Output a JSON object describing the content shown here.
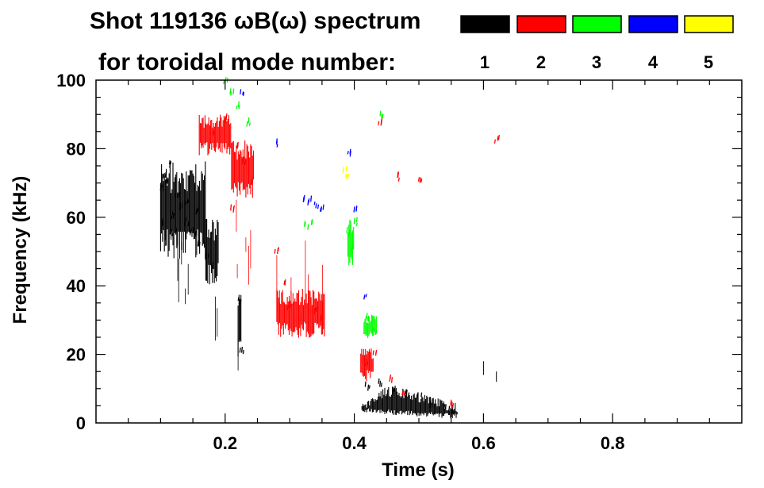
{
  "chart_data": {
    "type": "scatter",
    "title_line1": "Shot 119136 ωB(ω) spectrum",
    "title_line2": "for toroidal mode number:",
    "xlabel": "Time (s)",
    "ylabel": "Frequency (kHz)",
    "xlim": [
      0.0,
      1.0
    ],
    "ylim": [
      0,
      100
    ],
    "x_ticks": [
      0.2,
      0.4,
      0.6,
      0.8
    ],
    "x_tick_labels": [
      "0.2",
      "0.4",
      "0.6",
      "0.8"
    ],
    "y_ticks": [
      0,
      20,
      40,
      60,
      80,
      100
    ],
    "y_tick_labels": [
      "0",
      "20",
      "40",
      "60",
      "80",
      "100"
    ],
    "legend_position": "top-right",
    "series": [
      {
        "name": "1",
        "color": "#000000",
        "regions": [
          {
            "t": [
              0.1,
              0.17
            ],
            "f_center": 62,
            "f_spread": 12,
            "streaks": [
              20,
              52
            ]
          },
          {
            "t": [
              0.17,
              0.19
            ],
            "f_center": 50,
            "f_spread": 8,
            "streaks": [
              22,
              40
            ]
          },
          {
            "t": [
              0.22,
              0.225
            ],
            "f_center": 28,
            "f_spread": 8,
            "streaks": [
              15,
              38
            ]
          },
          {
            "t": [
              0.4,
              0.56
            ],
            "f_shape": "hump",
            "f_base": 3,
            "f_peak": 14,
            "streaks": []
          }
        ],
        "points": [
          [
            0.1,
            68
          ],
          [
            0.105,
            72
          ],
          [
            0.11,
            70
          ],
          [
            0.115,
            75
          ],
          [
            0.12,
            60
          ],
          [
            0.125,
            66
          ],
          [
            0.13,
            62
          ],
          [
            0.14,
            58
          ],
          [
            0.15,
            55
          ],
          [
            0.16,
            52
          ],
          [
            0.17,
            48
          ],
          [
            0.18,
            45
          ],
          [
            0.1,
            58
          ],
          [
            0.12,
            55
          ],
          [
            0.14,
            64
          ],
          [
            0.155,
            61
          ],
          [
            0.22,
            35
          ],
          [
            0.225,
            20
          ],
          [
            0.42,
            10
          ],
          [
            0.44,
            11
          ],
          [
            0.46,
            9
          ],
          [
            0.48,
            8
          ],
          [
            0.5,
            7
          ],
          [
            0.52,
            5
          ],
          [
            0.54,
            4
          ],
          [
            0.55,
            3
          ]
        ]
      },
      {
        "name": "2",
        "color": "#ff0000",
        "regions": [
          {
            "t": [
              0.16,
              0.21
            ],
            "f_center": 84,
            "f_spread": 5,
            "streaks": []
          },
          {
            "t": [
              0.21,
              0.245
            ],
            "f_center": 74,
            "f_spread": 7,
            "streaks": [
              40,
              60
            ]
          },
          {
            "t": [
              0.28,
              0.355
            ],
            "f_center": 32,
            "f_spread": 6,
            "streaks": [
              17,
              58
            ]
          },
          {
            "t": [
              0.41,
              0.43
            ],
            "f_center": 17,
            "f_spread": 4,
            "streaks": []
          }
        ],
        "points": [
          [
            0.18,
            84
          ],
          [
            0.2,
            88
          ],
          [
            0.22,
            80
          ],
          [
            0.23,
            75
          ],
          [
            0.24,
            70
          ],
          [
            0.21,
            62
          ],
          [
            0.28,
            50
          ],
          [
            0.29,
            40
          ],
          [
            0.3,
            33
          ],
          [
            0.32,
            30
          ],
          [
            0.34,
            32
          ],
          [
            0.35,
            30
          ],
          [
            0.42,
            17
          ],
          [
            0.43,
            20
          ],
          [
            0.455,
            12
          ],
          [
            0.475,
            8
          ],
          [
            0.55,
            5
          ],
          [
            0.62,
            82
          ],
          [
            0.47,
            71
          ],
          [
            0.5,
            70
          ],
          [
            0.44,
            87
          ]
        ]
      },
      {
        "name": "3",
        "color": "#00ff00",
        "regions": [
          {
            "t": [
              0.39,
              0.4
            ],
            "f_center": 53,
            "f_spread": 6,
            "streaks": []
          },
          {
            "t": [
              0.415,
              0.435
            ],
            "f_center": 28,
            "f_spread": 3,
            "streaks": []
          }
        ],
        "points": [
          [
            0.2,
            99
          ],
          [
            0.21,
            96
          ],
          [
            0.22,
            92
          ],
          [
            0.235,
            87
          ],
          [
            0.325,
            57
          ],
          [
            0.335,
            58
          ],
          [
            0.39,
            55
          ],
          [
            0.395,
            50
          ],
          [
            0.4,
            58
          ],
          [
            0.42,
            30
          ],
          [
            0.43,
            26
          ],
          [
            0.44,
            89
          ]
        ]
      },
      {
        "name": "4",
        "color": "#0000ff",
        "regions": [],
        "points": [
          [
            0.225,
            96
          ],
          [
            0.28,
            81
          ],
          [
            0.32,
            65
          ],
          [
            0.33,
            64
          ],
          [
            0.34,
            63
          ],
          [
            0.35,
            62
          ],
          [
            0.39,
            78
          ],
          [
            0.4,
            62
          ],
          [
            0.415,
            36
          ]
        ]
      },
      {
        "name": "5",
        "color": "#ffff00",
        "regions": [],
        "points": [
          [
            0.385,
            73
          ],
          [
            0.39,
            71
          ]
        ]
      }
    ],
    "isolated_traces": [
      {
        "color": "#000000",
        "t": 0.6,
        "f": [
          14,
          18
        ]
      },
      {
        "color": "#000000",
        "t": 0.62,
        "f": [
          12,
          15
        ]
      }
    ]
  }
}
